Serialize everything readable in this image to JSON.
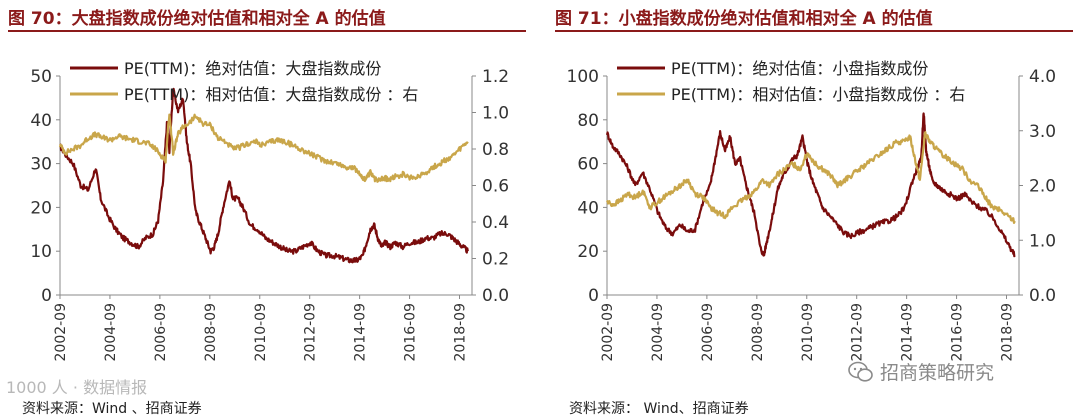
{
  "colors": {
    "title": "#8b1a1a",
    "absolute_series": "#7a0c0c",
    "relative_series": "#c9a64a"
  },
  "watermark": {
    "text": "1000 人 · 数据情报"
  },
  "wechat": {
    "icon": "wechat-icon",
    "text": "招商策略研究"
  },
  "chart_data": [
    {
      "type": "line",
      "title": "图 70：大盘指数成份绝对估值和相对全 A 的估值",
      "source": "资料来源：Wind 、招商证券",
      "x_tick_labels": [
        "2002-09",
        "2004-09",
        "2006-09",
        "2008-09",
        "2010-09",
        "2012-09",
        "2014-09",
        "2016-09",
        "2018-09"
      ],
      "x_range": [
        2002.67,
        2019.17
      ],
      "y_left": {
        "range": [
          0,
          50
        ],
        "ticks": [
          "0",
          "10",
          "20",
          "30",
          "40",
          "50"
        ]
      },
      "y_right": {
        "range": [
          0,
          1.2
        ],
        "ticks": [
          "0.0",
          "0.2",
          "0.4",
          "0.6",
          "0.8",
          "1.0",
          "1.2"
        ]
      },
      "series": [
        {
          "name": "PE(TTM)：绝对估值：大盘指数成份",
          "axis": "left",
          "x": [
            2002.67,
            2002.9,
            2003.2,
            2003.5,
            2003.8,
            2004.1,
            2004.3,
            2004.6,
            2004.9,
            2005.2,
            2005.5,
            2005.8,
            2006.1,
            2006.4,
            2006.6,
            2006.8,
            2006.95,
            2007.05,
            2007.2,
            2007.4,
            2007.6,
            2007.75,
            2007.9,
            2008.1,
            2008.3,
            2008.5,
            2008.7,
            2008.85,
            2009.0,
            2009.2,
            2009.45,
            2009.6,
            2009.8,
            2010.0,
            2010.3,
            2010.6,
            2010.9,
            2011.2,
            2011.5,
            2011.8,
            2012.1,
            2012.4,
            2012.7,
            2013.0,
            2013.3,
            2013.6,
            2013.9,
            2014.2,
            2014.4,
            2014.6,
            2014.8,
            2014.95,
            2015.1,
            2015.25,
            2015.4,
            2015.55,
            2015.7,
            2015.9,
            2016.1,
            2016.4,
            2016.7,
            2017.0,
            2017.3,
            2017.6,
            2017.9,
            2018.2,
            2018.4,
            2018.6,
            2018.8,
            2019.0
          ],
          "values": [
            34,
            32,
            30,
            25,
            24,
            29,
            22,
            18,
            15,
            13,
            12,
            11,
            13,
            14,
            17,
            26,
            39,
            33,
            47,
            42,
            45,
            35,
            30,
            19,
            16,
            13,
            10,
            11,
            14,
            20,
            26,
            22,
            22,
            20,
            16,
            15,
            13,
            12,
            11,
            10,
            10,
            11,
            12,
            10,
            9,
            9,
            8.5,
            8,
            7.8,
            8,
            9,
            12,
            15,
            16,
            13,
            11,
            12,
            11,
            12,
            11,
            12,
            12,
            13,
            13,
            14,
            14,
            13,
            12,
            11,
            10
          ]
        },
        {
          "name": "PE(TTM)：相对估值：大盘指数成份 ：右",
          "axis": "right",
          "x": [
            2002.67,
            2002.9,
            2003.2,
            2003.5,
            2003.8,
            2004.1,
            2004.4,
            2004.7,
            2005.0,
            2005.3,
            2005.6,
            2005.9,
            2006.2,
            2006.5,
            2006.75,
            2006.9,
            2007.05,
            2007.2,
            2007.4,
            2007.6,
            2007.9,
            2008.1,
            2008.4,
            2008.7,
            2009.0,
            2009.3,
            2009.6,
            2009.9,
            2010.2,
            2010.5,
            2010.8,
            2011.1,
            2011.4,
            2011.7,
            2012.0,
            2012.3,
            2012.6,
            2012.9,
            2013.2,
            2013.5,
            2013.8,
            2014.1,
            2014.4,
            2014.7,
            2014.9,
            2015.1,
            2015.3,
            2015.5,
            2015.7,
            2015.9,
            2016.1,
            2016.4,
            2016.7,
            2017.0,
            2017.3,
            2017.6,
            2017.9,
            2018.1,
            2018.4,
            2018.7,
            2019.0
          ],
          "values": [
            0.82,
            0.78,
            0.8,
            0.82,
            0.86,
            0.88,
            0.86,
            0.85,
            0.87,
            0.86,
            0.85,
            0.84,
            0.83,
            0.8,
            0.76,
            0.74,
            1.0,
            0.78,
            0.88,
            0.92,
            0.95,
            0.98,
            0.94,
            0.93,
            0.86,
            0.84,
            0.8,
            0.81,
            0.83,
            0.84,
            0.82,
            0.84,
            0.85,
            0.84,
            0.82,
            0.8,
            0.78,
            0.76,
            0.74,
            0.73,
            0.72,
            0.7,
            0.7,
            0.66,
            0.63,
            0.67,
            0.63,
            0.64,
            0.64,
            0.63,
            0.65,
            0.66,
            0.64,
            0.65,
            0.67,
            0.7,
            0.72,
            0.74,
            0.76,
            0.8,
            0.84
          ]
        }
      ]
    },
    {
      "type": "line",
      "title": "图 71：小盘指数成份绝对估值和相对全 A 的估值",
      "source": "资料来源： Wind、招商证券",
      "x_tick_labels": [
        "2002-09",
        "2004-09",
        "2006-09",
        "2008-09",
        "2010-09",
        "2012-09",
        "2014-09",
        "2016-09",
        "2018-09"
      ],
      "x_range": [
        2002.67,
        2019.17
      ],
      "y_left": {
        "range": [
          0,
          100
        ],
        "ticks": [
          "0",
          "20",
          "40",
          "60",
          "80",
          "100"
        ]
      },
      "y_right": {
        "range": [
          0,
          4.0
        ],
        "ticks": [
          "0.0",
          "1.0",
          "2.0",
          "3.0",
          "4.0"
        ]
      },
      "series": [
        {
          "name": "PE(TTM)：绝对估值：小盘指数成份",
          "axis": "left",
          "x": [
            2002.67,
            2002.9,
            2003.2,
            2003.5,
            2003.8,
            2004.1,
            2004.4,
            2004.7,
            2005.0,
            2005.3,
            2005.6,
            2005.9,
            2006.2,
            2006.5,
            2006.8,
            2007.0,
            2007.2,
            2007.4,
            2007.6,
            2007.8,
            2008.0,
            2008.2,
            2008.4,
            2008.6,
            2008.8,
            2008.95,
            2009.1,
            2009.3,
            2009.5,
            2009.7,
            2009.9,
            2010.1,
            2010.3,
            2010.5,
            2010.7,
            2010.9,
            2011.1,
            2011.3,
            2011.6,
            2011.9,
            2012.2,
            2012.5,
            2012.8,
            2013.1,
            2013.4,
            2013.7,
            2014.0,
            2014.3,
            2014.6,
            2014.9,
            2015.1,
            2015.25,
            2015.35,
            2015.45,
            2015.55,
            2015.7,
            2015.9,
            2016.1,
            2016.4,
            2016.7,
            2017.0,
            2017.3,
            2017.6,
            2017.9,
            2018.2,
            2018.5,
            2018.8,
            2019.0
          ],
          "values": [
            74,
            68,
            64,
            58,
            50,
            56,
            48,
            38,
            31,
            28,
            32,
            29,
            30,
            42,
            50,
            62,
            74,
            66,
            72,
            60,
            62,
            52,
            44,
            36,
            22,
            18,
            26,
            36,
            48,
            54,
            58,
            62,
            64,
            72,
            60,
            52,
            46,
            40,
            36,
            32,
            28,
            27,
            29,
            30,
            32,
            33,
            34,
            36,
            40,
            52,
            58,
            62,
            84,
            66,
            60,
            52,
            50,
            48,
            46,
            44,
            46,
            42,
            40,
            38,
            34,
            28,
            22,
            18
          ]
        },
        {
          "name": "PE(TTM)：相对估值：小盘指数成份 ：右",
          "axis": "right",
          "x": [
            2002.67,
            2002.9,
            2003.2,
            2003.5,
            2003.8,
            2004.1,
            2004.4,
            2004.7,
            2005.0,
            2005.3,
            2005.6,
            2005.9,
            2006.2,
            2006.5,
            2006.8,
            2007.1,
            2007.4,
            2007.7,
            2008.0,
            2008.3,
            2008.6,
            2008.9,
            2009.2,
            2009.5,
            2009.8,
            2010.1,
            2010.4,
            2010.7,
            2011.0,
            2011.3,
            2011.6,
            2011.9,
            2012.2,
            2012.5,
            2012.8,
            2013.1,
            2013.4,
            2013.7,
            2014.0,
            2014.3,
            2014.6,
            2014.8,
            2015.0,
            2015.2,
            2015.4,
            2015.6,
            2015.8,
            2016.0,
            2016.3,
            2016.6,
            2016.9,
            2017.2,
            2017.5,
            2017.8,
            2018.1,
            2018.4,
            2018.7,
            2019.0
          ],
          "values": [
            1.7,
            1.65,
            1.72,
            1.85,
            1.78,
            1.9,
            1.6,
            1.7,
            1.8,
            1.9,
            2.0,
            2.1,
            1.85,
            1.8,
            1.6,
            1.5,
            1.45,
            1.6,
            1.7,
            1.8,
            1.9,
            2.1,
            2.0,
            2.2,
            2.3,
            2.4,
            2.3,
            2.6,
            2.4,
            2.3,
            2.2,
            2.0,
            2.1,
            2.2,
            2.3,
            2.4,
            2.5,
            2.6,
            2.7,
            2.8,
            2.8,
            2.9,
            2.5,
            2.1,
            2.95,
            2.8,
            2.7,
            2.6,
            2.5,
            2.4,
            2.3,
            2.1,
            2.0,
            1.8,
            1.6,
            1.55,
            1.45,
            1.35
          ]
        }
      ]
    }
  ]
}
